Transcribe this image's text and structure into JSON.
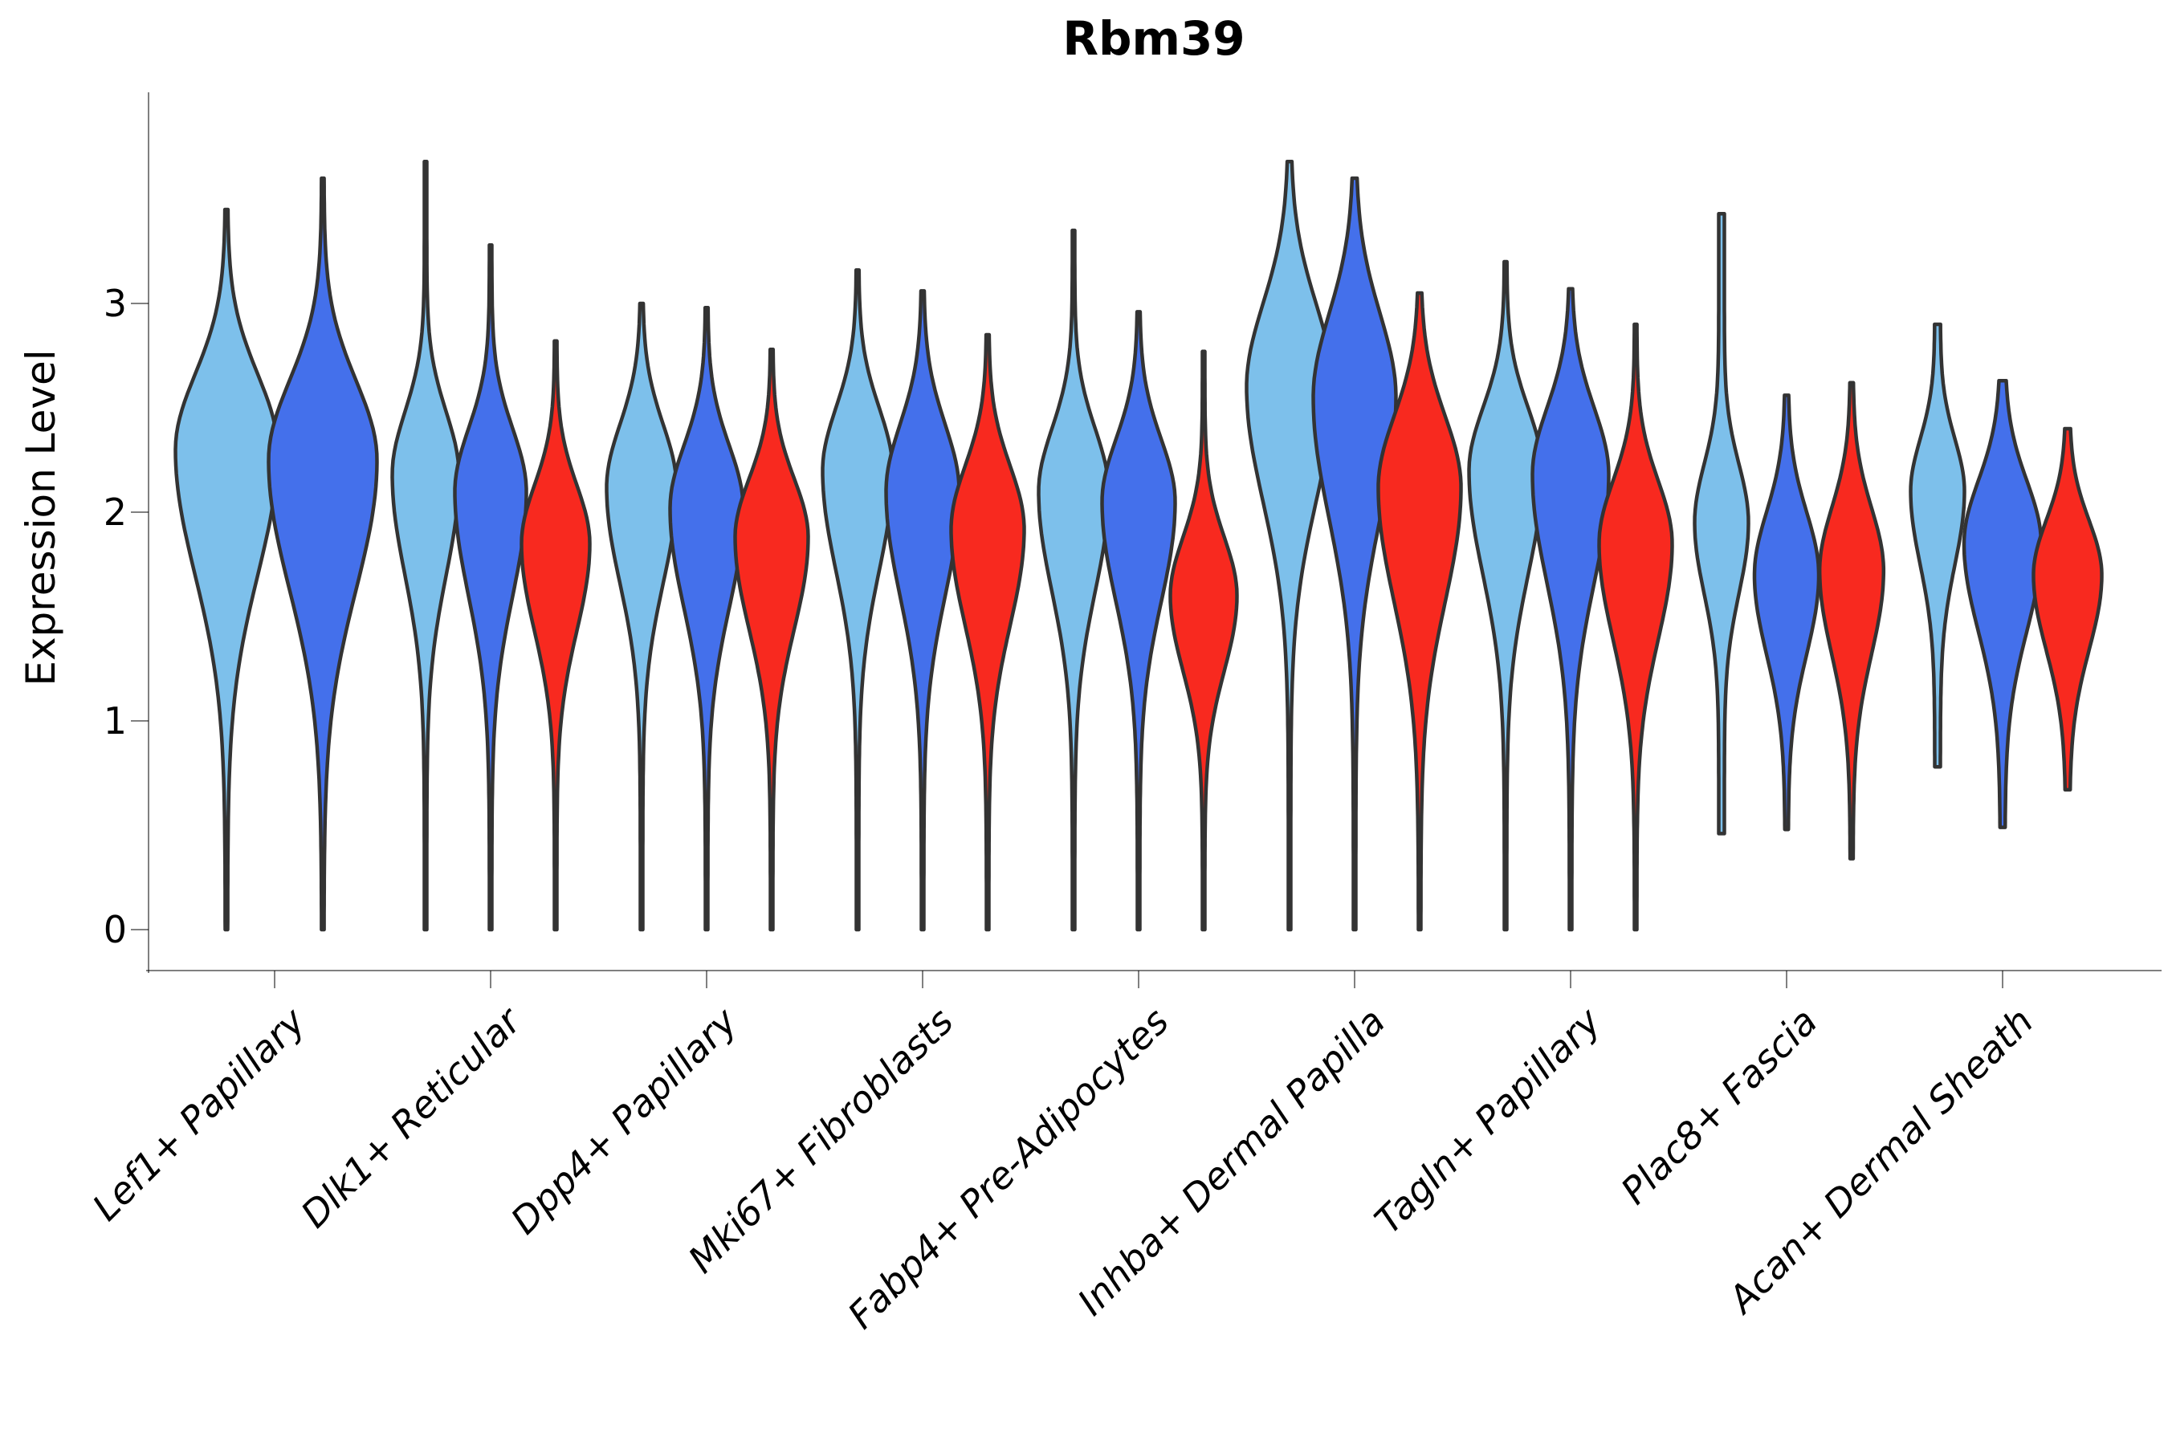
{
  "title": "Rbm39",
  "ylabel": "Expression Level",
  "colors": {
    "light_blue": "#7DC0EB",
    "dark_blue": "#4470EB",
    "red": "#F8291F",
    "outline": "#333333",
    "axis": "#000000"
  },
  "chart_data": {
    "type": "violin",
    "title": "Rbm39",
    "ylabel": "Expression Level",
    "xlabel": "",
    "ylim": [
      -0.2,
      4.0
    ],
    "yticks": [
      0,
      1,
      2,
      3
    ],
    "grid": false,
    "legend": "none",
    "series_order": [
      "light_blue",
      "dark_blue",
      "red"
    ],
    "groups": [
      {
        "label": "Lef1+ Papillary",
        "violins": [
          {
            "series": "light_blue",
            "max": 3.45,
            "peak": 2.3,
            "min": 0.0,
            "amp": 62,
            "spread_up": 0.36,
            "spread_down": 0.6,
            "tail_w": 1.5
          },
          {
            "series": "dark_blue",
            "max": 3.6,
            "peak": 2.25,
            "min": 0.0,
            "amp": 66,
            "spread_up": 0.38,
            "spread_down": 0.62,
            "tail_w": 1.5
          }
        ]
      },
      {
        "label": "Dlk1+ Reticular",
        "violins": [
          {
            "series": "light_blue",
            "max": 3.68,
            "peak": 2.18,
            "min": 0.0,
            "amp": 40,
            "spread_up": 0.3,
            "spread_down": 0.48,
            "tail_w": 1.5
          },
          {
            "series": "dark_blue",
            "max": 3.28,
            "peak": 2.1,
            "min": 0.0,
            "amp": 43,
            "spread_up": 0.3,
            "spread_down": 0.5,
            "tail_w": 1.5
          },
          {
            "series": "red",
            "max": 2.82,
            "peak": 1.85,
            "min": 0.0,
            "amp": 41,
            "spread_up": 0.28,
            "spread_down": 0.42,
            "tail_w": 1.5
          }
        ]
      },
      {
        "label": "Dpp4+ Papillary",
        "violins": [
          {
            "series": "light_blue",
            "max": 3.0,
            "peak": 2.12,
            "min": 0.0,
            "amp": 42,
            "spread_up": 0.3,
            "spread_down": 0.46,
            "tail_w": 1.5
          },
          {
            "series": "dark_blue",
            "max": 2.98,
            "peak": 2.02,
            "min": 0.0,
            "amp": 44,
            "spread_up": 0.3,
            "spread_down": 0.48,
            "tail_w": 1.5
          },
          {
            "series": "red",
            "max": 2.78,
            "peak": 1.88,
            "min": 0.0,
            "amp": 44,
            "spread_up": 0.28,
            "spread_down": 0.44,
            "tail_w": 1.5
          }
        ]
      },
      {
        "label": "Mki67+ Fibroblasts",
        "violins": [
          {
            "series": "light_blue",
            "max": 3.16,
            "peak": 2.2,
            "min": 0.0,
            "amp": 42,
            "spread_up": 0.3,
            "spread_down": 0.48,
            "tail_w": 1.5
          },
          {
            "series": "dark_blue",
            "max": 3.06,
            "peak": 2.1,
            "min": 0.0,
            "amp": 44,
            "spread_up": 0.32,
            "spread_down": 0.5,
            "tail_w": 1.5
          },
          {
            "series": "red",
            "max": 2.85,
            "peak": 1.92,
            "min": 0.0,
            "amp": 44,
            "spread_up": 0.3,
            "spread_down": 0.46,
            "tail_w": 1.5
          }
        ]
      },
      {
        "label": "Fabp4+ Pre-Adipocytes",
        "violins": [
          {
            "series": "light_blue",
            "max": 3.35,
            "peak": 2.1,
            "min": 0.0,
            "amp": 42,
            "spread_up": 0.3,
            "spread_down": 0.48,
            "tail_w": 1.5
          },
          {
            "series": "dark_blue",
            "max": 2.96,
            "peak": 2.05,
            "min": 0.0,
            "amp": 44,
            "spread_up": 0.3,
            "spread_down": 0.48,
            "tail_w": 1.5
          },
          {
            "series": "red",
            "max": 2.77,
            "peak": 1.6,
            "min": 0.0,
            "amp": 40,
            "spread_up": 0.28,
            "spread_down": 0.36,
            "tail_w": 1.5
          }
        ]
      },
      {
        "label": "Inhba+ Dermal Papilla",
        "violins": [
          {
            "series": "light_blue",
            "max": 3.68,
            "peak": 2.6,
            "min": 0.0,
            "amp": 52,
            "spread_up": 0.4,
            "spread_down": 0.55,
            "tail_w": 1.5
          },
          {
            "series": "dark_blue",
            "max": 3.6,
            "peak": 2.55,
            "min": 0.0,
            "amp": 50,
            "spread_up": 0.4,
            "spread_down": 0.58,
            "tail_w": 1.5
          },
          {
            "series": "red",
            "max": 3.05,
            "peak": 2.12,
            "min": 0.0,
            "amp": 50,
            "spread_up": 0.34,
            "spread_down": 0.55,
            "tail_w": 1.5
          }
        ]
      },
      {
        "label": "Tagln+ Papillary",
        "violins": [
          {
            "series": "light_blue",
            "max": 3.2,
            "peak": 2.2,
            "min": 0.0,
            "amp": 44,
            "spread_up": 0.3,
            "spread_down": 0.5,
            "tail_w": 1.5
          },
          {
            "series": "dark_blue",
            "max": 3.07,
            "peak": 2.18,
            "min": 0.0,
            "amp": 46,
            "spread_up": 0.32,
            "spread_down": 0.52,
            "tail_w": 1.5
          },
          {
            "series": "red",
            "max": 2.9,
            "peak": 1.85,
            "min": 0.0,
            "amp": 44,
            "spread_up": 0.3,
            "spread_down": 0.46,
            "tail_w": 1.5
          }
        ]
      },
      {
        "label": "Plac8+ Fascia",
        "violins": [
          {
            "series": "light_blue",
            "max": 3.43,
            "peak": 1.95,
            "min": 0.46,
            "amp": 30,
            "spread_up": 0.28,
            "spread_down": 0.34,
            "tail_w": 3.5
          },
          {
            "series": "dark_blue",
            "max": 2.56,
            "peak": 1.7,
            "min": 0.48,
            "amp": 38,
            "spread_up": 0.3,
            "spread_down": 0.38,
            "tail_w": 2.0
          },
          {
            "series": "red",
            "max": 2.62,
            "peak": 1.72,
            "min": 0.34,
            "amp": 38,
            "spread_up": 0.3,
            "spread_down": 0.4,
            "tail_w": 1.8
          }
        ]
      },
      {
        "label": "Acan+ Dermal Sheath",
        "violins": [
          {
            "series": "light_blue",
            "max": 2.9,
            "peak": 2.1,
            "min": 0.78,
            "amp": 30,
            "spread_up": 0.25,
            "spread_down": 0.35,
            "tail_w": 3.5
          },
          {
            "series": "dark_blue",
            "max": 2.63,
            "peak": 1.85,
            "min": 0.49,
            "amp": 45,
            "spread_up": 0.3,
            "spread_down": 0.42,
            "tail_w": 3.0
          },
          {
            "series": "red",
            "max": 2.4,
            "peak": 1.7,
            "min": 0.67,
            "amp": 40,
            "spread_up": 0.26,
            "spread_down": 0.36,
            "tail_w": 2.5
          }
        ]
      }
    ]
  }
}
